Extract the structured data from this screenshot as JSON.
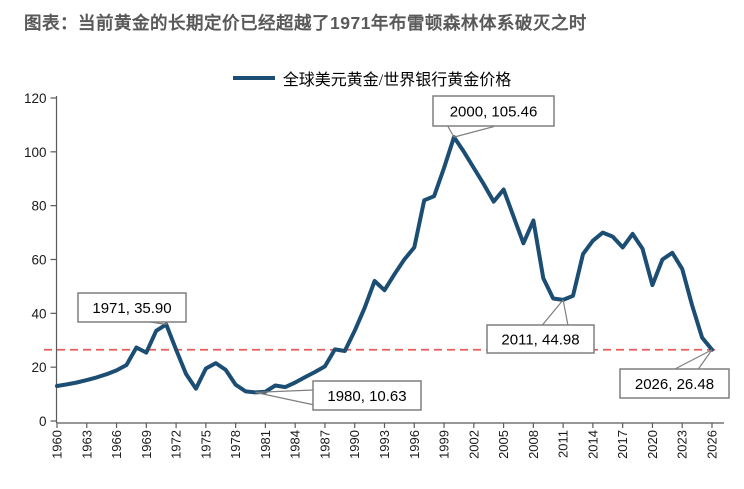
{
  "page": {
    "title": "图表：当前黄金的长期定价已经超越了1971年布雷顿森林体系破灭之时"
  },
  "legend": {
    "label": "全球美元黄金/世界银行黄金价格"
  },
  "colors": {
    "line": "#1c4e74",
    "reference_line": "#e85c5c",
    "title_text": "#595959",
    "axis": "#595959",
    "callout_border": "#7f7f7f"
  },
  "chart_data": {
    "type": "line",
    "title": "图表：当前黄金的长期定价已经超越了1971年布雷顿森林体系破灭之时",
    "xlabel": "",
    "ylabel": "",
    "ylim": [
      0,
      120
    ],
    "yticks": [
      0,
      20,
      40,
      60,
      80,
      100,
      120
    ],
    "xticks": [
      1960,
      1963,
      1966,
      1969,
      1972,
      1975,
      1978,
      1981,
      1984,
      1987,
      1990,
      1993,
      1996,
      1999,
      2002,
      2005,
      2008,
      2011,
      2014,
      2017,
      2020,
      2023,
      2026
    ],
    "x_tick_rotation": 90,
    "grid": false,
    "legend_position": "top-center",
    "series": [
      {
        "name": "全球美元黄金/世界银行黄金价格",
        "x": [
          1960,
          1961,
          1962,
          1963,
          1964,
          1965,
          1966,
          1967,
          1968,
          1969,
          1970,
          1971,
          1972,
          1973,
          1974,
          1975,
          1976,
          1977,
          1978,
          1979,
          1980,
          1981,
          1982,
          1983,
          1984,
          1985,
          1986,
          1987,
          1988,
          1989,
          1990,
          1991,
          1992,
          1993,
          1994,
          1995,
          1996,
          1997,
          1998,
          1999,
          2000,
          2001,
          2002,
          2003,
          2004,
          2005,
          2006,
          2007,
          2008,
          2009,
          2010,
          2011,
          2012,
          2013,
          2014,
          2015,
          2016,
          2017,
          2018,
          2019,
          2020,
          2021,
          2022,
          2023,
          2024,
          2025,
          2026
        ],
        "values": [
          13.0,
          13.6,
          14.3,
          15.2,
          16.2,
          17.4,
          18.8,
          20.8,
          27.3,
          25.4,
          33.5,
          35.9,
          26.5,
          17.5,
          12.0,
          19.5,
          21.5,
          19.0,
          13.5,
          11.0,
          10.63,
          10.9,
          13.2,
          12.6,
          14.3,
          16.3,
          18.2,
          20.3,
          26.6,
          26.0,
          33.5,
          42.0,
          52.0,
          48.6,
          54.5,
          60.0,
          64.5,
          82.0,
          83.5,
          94.0,
          105.46,
          100.0,
          94.0,
          88.0,
          81.5,
          86.0,
          76.0,
          66.0,
          74.5,
          53.0,
          45.5,
          44.98,
          46.5,
          62.0,
          67.0,
          70.0,
          68.5,
          64.5,
          69.5,
          64.0,
          50.5,
          60.0,
          62.5,
          56.5,
          43.0,
          31.0,
          26.48
        ]
      }
    ],
    "reference_line": {
      "value": 26.48,
      "style": "dashed",
      "color": "#e85c5c"
    },
    "annotations": [
      {
        "label": "1971, 35.90",
        "year": 1971,
        "value": 35.9
      },
      {
        "label": "2000, 105.46",
        "year": 2000,
        "value": 105.46
      },
      {
        "label": "1980, 10.63",
        "year": 1980,
        "value": 10.63
      },
      {
        "label": "2011, 44.98",
        "year": 2011,
        "value": 44.98
      },
      {
        "label": "2026, 26.48",
        "year": 2026,
        "value": 26.48
      }
    ]
  }
}
